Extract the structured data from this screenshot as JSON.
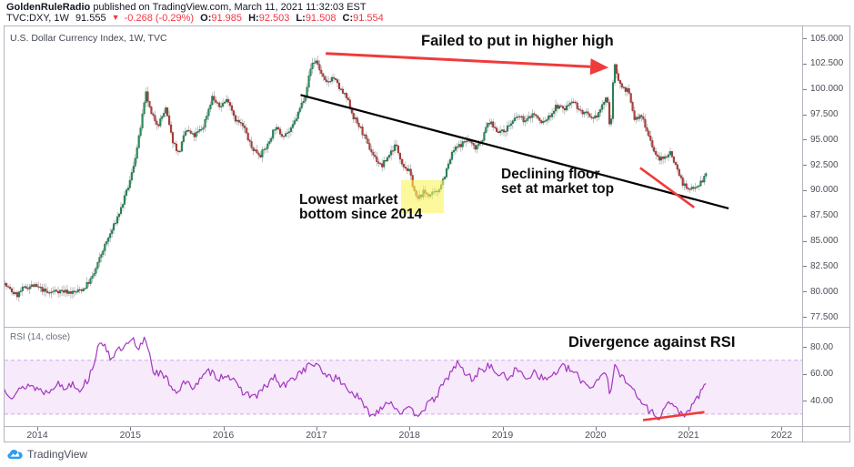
{
  "header": {
    "author": "GoldenRuleRadio",
    "published": " published on TradingView.com, March 11, 2021 11:32:03 EST",
    "symbol": "TVC:DXY, 1W",
    "last_price": "91.555",
    "change_dir": "▼",
    "change": "-0.268 (-0.29%)",
    "ohlc": [
      {
        "label": "O:",
        "value": "91.985"
      },
      {
        "label": "H:",
        "value": "92.503"
      },
      {
        "label": "L:",
        "value": "91.508"
      },
      {
        "label": "C:",
        "value": "91.554"
      }
    ]
  },
  "chart": {
    "legend": "U.S. Dollar Currency Index, 1W, TVC",
    "rsi_legend": "RSI (14, close)"
  },
  "annotations": {
    "failed_high": "Failed to put in higher high",
    "declining_floor_1": "Declining floor",
    "declining_floor_2": "set at market top",
    "lowest_bottom_1": "Lowest market",
    "lowest_bottom_2": "bottom since 2014",
    "divergence": "Divergence against RSI"
  },
  "footer": {
    "brand": "TradingView"
  },
  "colors": {
    "up_body": "#2a8f5c",
    "up_border": "#1c6b45",
    "down_body": "#b5403c",
    "down_border": "#8e2f2c",
    "wick": "#95989f",
    "rsi_line": "#a435bf",
    "rsi_band_fill": "#efd9f7",
    "rsi_band_edge": "#cfa9e8",
    "annotation_red": "#ef3b3b",
    "trend_black": "#000000",
    "highlight_yellow": "#f8f559",
    "value_red": "#f23645",
    "brand_blue": "#2e9bf0"
  },
  "chart_data": {
    "type": "candlestick",
    "title": "U.S. Dollar Currency Index, 1W, TVC",
    "timeframe": "1W",
    "x_axis": {
      "ticks": [
        "2014",
        "2015",
        "2016",
        "2017",
        "2018",
        "2019",
        "2020",
        "2021",
        "2022"
      ],
      "range": [
        2013.63,
        2021.2
      ]
    },
    "price_axis": {
      "ticks": [
        "105.000",
        "102.500",
        "100.000",
        "97.500",
        "95.000",
        "92.500",
        "90.000",
        "87.500",
        "85.000",
        "82.500",
        "80.000",
        "77.500"
      ],
      "range": [
        76.0,
        106.2
      ]
    },
    "price_path": [
      [
        2013.63,
        80.9
      ],
      [
        2013.7,
        80.2
      ],
      [
        2013.78,
        79.6
      ],
      [
        2013.85,
        80.3
      ],
      [
        2013.95,
        80.6
      ],
      [
        2014.05,
        80.2
      ],
      [
        2014.12,
        79.8
      ],
      [
        2014.2,
        80.1
      ],
      [
        2014.3,
        80.0
      ],
      [
        2014.4,
        79.9
      ],
      [
        2014.5,
        80.3
      ],
      [
        2014.6,
        81.5
      ],
      [
        2014.7,
        84.0
      ],
      [
        2014.8,
        86.0
      ],
      [
        2014.9,
        88.2
      ],
      [
        2015.0,
        91.0
      ],
      [
        2015.08,
        94.5
      ],
      [
        2015.17,
        99.6
      ],
      [
        2015.22,
        97.5
      ],
      [
        2015.3,
        96.5
      ],
      [
        2015.38,
        98.0
      ],
      [
        2015.45,
        95.0
      ],
      [
        2015.52,
        93.6
      ],
      [
        2015.6,
        96.0
      ],
      [
        2015.68,
        95.3
      ],
      [
        2015.78,
        96.2
      ],
      [
        2015.88,
        99.2
      ],
      [
        2015.95,
        98.2
      ],
      [
        2016.05,
        99.0
      ],
      [
        2016.13,
        97.0
      ],
      [
        2016.22,
        96.2
      ],
      [
        2016.3,
        94.2
      ],
      [
        2016.4,
        93.5
      ],
      [
        2016.48,
        94.5
      ],
      [
        2016.55,
        96.2
      ],
      [
        2016.63,
        95.5
      ],
      [
        2016.72,
        95.8
      ],
      [
        2016.8,
        97.5
      ],
      [
        2016.88,
        99.5
      ],
      [
        2016.95,
        102.5
      ],
      [
        2017.0,
        102.8
      ],
      [
        2017.05,
        101.5
      ],
      [
        2017.1,
        100.5
      ],
      [
        2017.18,
        101.2
      ],
      [
        2017.25,
        100.0
      ],
      [
        2017.33,
        99.0
      ],
      [
        2017.4,
        97.2
      ],
      [
        2017.48,
        96.0
      ],
      [
        2017.55,
        94.5
      ],
      [
        2017.63,
        93.2
      ],
      [
        2017.7,
        92.3
      ],
      [
        2017.78,
        93.5
      ],
      [
        2017.85,
        94.5
      ],
      [
        2017.93,
        92.5
      ],
      [
        2018.0,
        91.8
      ],
      [
        2018.08,
        89.0
      ],
      [
        2018.15,
        89.8
      ],
      [
        2018.22,
        89.5
      ],
      [
        2018.3,
        89.8
      ],
      [
        2018.38,
        91.5
      ],
      [
        2018.47,
        93.9
      ],
      [
        2018.55,
        94.5
      ],
      [
        2018.63,
        95.0
      ],
      [
        2018.7,
        94.2
      ],
      [
        2018.78,
        95.0
      ],
      [
        2018.85,
        96.8
      ],
      [
        2018.93,
        96.0
      ],
      [
        2019.0,
        95.7
      ],
      [
        2019.08,
        96.5
      ],
      [
        2019.17,
        97.3
      ],
      [
        2019.25,
        96.8
      ],
      [
        2019.33,
        97.6
      ],
      [
        2019.42,
        96.6
      ],
      [
        2019.5,
        97.2
      ],
      [
        2019.58,
        98.3
      ],
      [
        2019.67,
        98.0
      ],
      [
        2019.75,
        99.0
      ],
      [
        2019.83,
        97.8
      ],
      [
        2019.9,
        97.5
      ],
      [
        2019.97,
        96.8
      ],
      [
        2020.05,
        97.9
      ],
      [
        2020.12,
        99.3
      ],
      [
        2020.16,
        95.8
      ],
      [
        2020.2,
        102.4
      ],
      [
        2020.27,
        100.3
      ],
      [
        2020.35,
        99.8
      ],
      [
        2020.42,
        97.0
      ],
      [
        2020.5,
        97.3
      ],
      [
        2020.57,
        95.5
      ],
      [
        2020.65,
        93.3
      ],
      [
        2020.72,
        93.0
      ],
      [
        2020.8,
        93.8
      ],
      [
        2020.87,
        92.3
      ],
      [
        2020.93,
        90.8
      ],
      [
        2021.0,
        89.9
      ],
      [
        2021.05,
        90.4
      ],
      [
        2021.1,
        90.5
      ],
      [
        2021.15,
        91.0
      ],
      [
        2021.19,
        91.56
      ]
    ],
    "rsi": {
      "label": "RSI (14, close)",
      "ticks": [
        "80.00",
        "60.00",
        "40.00"
      ],
      "band": [
        30,
        70
      ],
      "path": [
        [
          2013.63,
          50
        ],
        [
          2013.72,
          44
        ],
        [
          2013.8,
          47
        ],
        [
          2013.9,
          52
        ],
        [
          2014.0,
          49
        ],
        [
          2014.1,
          46
        ],
        [
          2014.2,
          53
        ],
        [
          2014.3,
          49
        ],
        [
          2014.38,
          54
        ],
        [
          2014.45,
          48
        ],
        [
          2014.55,
          56
        ],
        [
          2014.65,
          78
        ],
        [
          2014.72,
          84
        ],
        [
          2014.78,
          72
        ],
        [
          2014.85,
          76
        ],
        [
          2014.95,
          80
        ],
        [
          2015.03,
          85
        ],
        [
          2015.08,
          76
        ],
        [
          2015.16,
          88
        ],
        [
          2015.25,
          62
        ],
        [
          2015.32,
          60
        ],
        [
          2015.4,
          55
        ],
        [
          2015.5,
          46
        ],
        [
          2015.58,
          54
        ],
        [
          2015.65,
          50
        ],
        [
          2015.75,
          55
        ],
        [
          2015.85,
          62
        ],
        [
          2015.95,
          57
        ],
        [
          2016.05,
          60
        ],
        [
          2016.15,
          50
        ],
        [
          2016.25,
          45
        ],
        [
          2016.35,
          43
        ],
        [
          2016.45,
          50
        ],
        [
          2016.55,
          58
        ],
        [
          2016.62,
          50
        ],
        [
          2016.7,
          53
        ],
        [
          2016.8,
          60
        ],
        [
          2016.9,
          65
        ],
        [
          2016.97,
          68
        ],
        [
          2017.05,
          62
        ],
        [
          2017.15,
          58
        ],
        [
          2017.25,
          55
        ],
        [
          2017.35,
          48
        ],
        [
          2017.45,
          42
        ],
        [
          2017.55,
          32
        ],
        [
          2017.62,
          29
        ],
        [
          2017.7,
          36
        ],
        [
          2017.78,
          40
        ],
        [
          2017.85,
          35
        ],
        [
          2017.93,
          31
        ],
        [
          2018.0,
          33
        ],
        [
          2018.08,
          30
        ],
        [
          2018.15,
          34
        ],
        [
          2018.25,
          40
        ],
        [
          2018.35,
          50
        ],
        [
          2018.45,
          62
        ],
        [
          2018.52,
          68
        ],
        [
          2018.6,
          60
        ],
        [
          2018.68,
          56
        ],
        [
          2018.75,
          62
        ],
        [
          2018.85,
          66
        ],
        [
          2018.95,
          60
        ],
        [
          2019.05,
          57
        ],
        [
          2019.15,
          63
        ],
        [
          2019.25,
          57
        ],
        [
          2019.35,
          62
        ],
        [
          2019.45,
          55
        ],
        [
          2019.55,
          60
        ],
        [
          2019.65,
          65
        ],
        [
          2019.75,
          62
        ],
        [
          2019.85,
          55
        ],
        [
          2019.95,
          50
        ],
        [
          2020.05,
          58
        ],
        [
          2020.12,
          63
        ],
        [
          2020.16,
          40
        ],
        [
          2020.2,
          66
        ],
        [
          2020.28,
          58
        ],
        [
          2020.35,
          55
        ],
        [
          2020.45,
          42
        ],
        [
          2020.55,
          35
        ],
        [
          2020.62,
          30
        ],
        [
          2020.7,
          28
        ],
        [
          2020.78,
          40
        ],
        [
          2020.85,
          34
        ],
        [
          2020.92,
          31
        ],
        [
          2021.0,
          30
        ],
        [
          2021.08,
          42
        ],
        [
          2021.14,
          46
        ],
        [
          2021.19,
          52
        ]
      ]
    },
    "markers": {
      "trend_line": {
        "from": [
          2016.83,
          99.4
        ],
        "to": [
          2021.43,
          88.2
        ]
      },
      "arrow": {
        "from": [
          2017.1,
          103.5
        ],
        "to": [
          2020.14,
          102.1
        ]
      },
      "highlight_rect": {
        "x": [
          2017.91,
          2018.37
        ],
        "price": [
          87.75,
          91.0
        ]
      },
      "red_segment_price": {
        "from": [
          2020.48,
          92.2
        ],
        "to": [
          2021.06,
          88.3
        ]
      },
      "red_segment_rsi": {
        "from": [
          2020.51,
          25.5
        ],
        "to": [
          2021.17,
          31.5
        ]
      }
    }
  }
}
